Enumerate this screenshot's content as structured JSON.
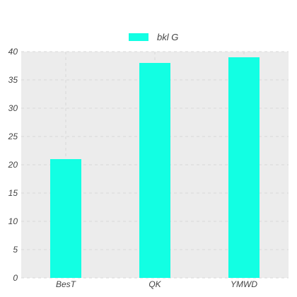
{
  "chart_data": {
    "type": "bar",
    "categories": [
      "BesT",
      "QK",
      "YMWD"
    ],
    "series": [
      {
        "name": "bkl G",
        "values": [
          21,
          38,
          39
        ]
      }
    ],
    "ylim": [
      0,
      40
    ],
    "yticks": [
      "0",
      "5",
      "10",
      "15",
      "20",
      "25",
      "30",
      "35",
      "40"
    ],
    "grid": true,
    "legend_position": "top-center",
    "colors": {
      "bar": "#12ffe3",
      "plot_background": "#ececec",
      "grid": "#d8d8d8",
      "text": "#444444"
    }
  }
}
